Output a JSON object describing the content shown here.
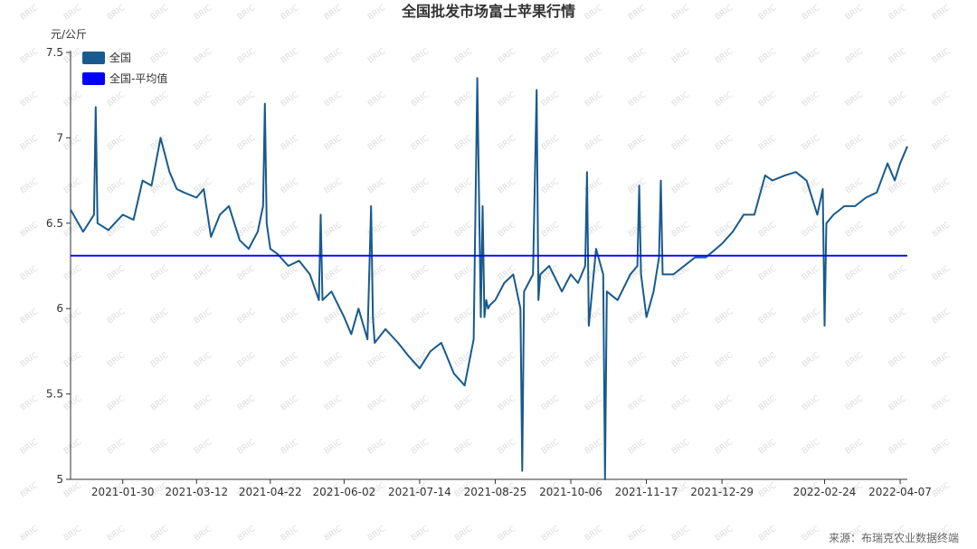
{
  "chart_data": {
    "type": "line",
    "title": "全国批发市场富士苹果行情",
    "ylabel": "元/公斤",
    "xlabel": "",
    "ylim": [
      5,
      7.5
    ],
    "yticks": [
      "5",
      "5.5",
      "6",
      "6.5",
      "7",
      "7.5"
    ],
    "x_range": [
      "2021-01-01",
      "2022-04-11"
    ],
    "xticks": [
      "2021-01-30",
      "2021-03-12",
      "2021-04-22",
      "2021-06-02",
      "2021-07-14",
      "2021-08-25",
      "2021-10-06",
      "2021-11-17",
      "2021-12-29",
      "2022-02-24",
      "2022-04-07"
    ],
    "grid": false,
    "legend_position": "top-left",
    "series": [
      {
        "name": "全国",
        "color": "#185a8d",
        "x": [
          "2021-01-01",
          "2021-01-08",
          "2021-01-14",
          "2021-01-15",
          "2021-01-16",
          "2021-01-22",
          "2021-01-30",
          "2021-02-05",
          "2021-02-10",
          "2021-02-15",
          "2021-02-20",
          "2021-02-25",
          "2021-03-01",
          "2021-03-05",
          "2021-03-12",
          "2021-03-16",
          "2021-03-20",
          "2021-03-25",
          "2021-03-30",
          "2021-04-05",
          "2021-04-10",
          "2021-04-15",
          "2021-04-18",
          "2021-04-19",
          "2021-04-20",
          "2021-04-22",
          "2021-04-26",
          "2021-05-02",
          "2021-05-08",
          "2021-05-14",
          "2021-05-19",
          "2021-05-20",
          "2021-05-21",
          "2021-05-26",
          "2021-06-02",
          "2021-06-06",
          "2021-06-10",
          "2021-06-15",
          "2021-06-17",
          "2021-06-18",
          "2021-06-19",
          "2021-06-25",
          "2021-07-02",
          "2021-07-08",
          "2021-07-14",
          "2021-07-20",
          "2021-07-26",
          "2021-08-02",
          "2021-08-08",
          "2021-08-13",
          "2021-08-15",
          "2021-08-17",
          "2021-08-18",
          "2021-08-19",
          "2021-08-20",
          "2021-08-21",
          "2021-08-22",
          "2021-08-25",
          "2021-08-30",
          "2021-09-04",
          "2021-09-08",
          "2021-09-09",
          "2021-09-10",
          "2021-09-15",
          "2021-09-17",
          "2021-09-18",
          "2021-09-19",
          "2021-09-24",
          "2021-10-01",
          "2021-10-06",
          "2021-10-10",
          "2021-10-14",
          "2021-10-15",
          "2021-10-16",
          "2021-10-20",
          "2021-10-24",
          "2021-10-25",
          "2021-10-26",
          "2021-11-01",
          "2021-11-08",
          "2021-11-12",
          "2021-11-13",
          "2021-11-14",
          "2021-11-17",
          "2021-11-21",
          "2021-11-24",
          "2021-11-25",
          "2021-11-26",
          "2021-12-02",
          "2021-12-08",
          "2021-12-14",
          "2021-12-20",
          "2021-12-29",
          "2022-01-04",
          "2022-01-10",
          "2022-01-16",
          "2022-01-22",
          "2022-01-26",
          "2022-02-02",
          "2022-02-08",
          "2022-02-14",
          "2022-02-20",
          "2022-02-23",
          "2022-02-24",
          "2022-02-25",
          "2022-03-01",
          "2022-03-07",
          "2022-03-13",
          "2022-03-19",
          "2022-03-25",
          "2022-03-31",
          "2022-04-04",
          "2022-04-07",
          "2022-04-11"
        ],
        "values": [
          6.58,
          6.45,
          6.55,
          7.18,
          6.5,
          6.46,
          6.55,
          6.52,
          6.75,
          6.72,
          7.0,
          6.8,
          6.7,
          6.68,
          6.65,
          6.7,
          6.42,
          6.55,
          6.6,
          6.4,
          6.35,
          6.45,
          6.6,
          7.2,
          6.5,
          6.35,
          6.32,
          6.25,
          6.28,
          6.2,
          6.05,
          6.55,
          6.05,
          6.1,
          5.95,
          5.85,
          6.0,
          5.82,
          6.6,
          5.95,
          5.8,
          5.88,
          5.8,
          5.72,
          5.65,
          5.75,
          5.8,
          5.62,
          5.55,
          5.82,
          7.35,
          5.95,
          6.6,
          5.95,
          6.05,
          6.0,
          6.02,
          6.05,
          6.15,
          6.2,
          6.0,
          5.05,
          6.1,
          6.2,
          7.28,
          6.05,
          6.2,
          6.25,
          6.1,
          6.2,
          6.15,
          6.25,
          6.8,
          5.9,
          6.35,
          6.2,
          5.0,
          6.1,
          6.05,
          6.2,
          6.25,
          6.72,
          6.2,
          5.95,
          6.1,
          6.3,
          6.75,
          6.2,
          6.2,
          6.25,
          6.3,
          6.3,
          6.38,
          6.45,
          6.55,
          6.55,
          6.78,
          6.75,
          6.78,
          6.8,
          6.75,
          6.55,
          6.7,
          5.9,
          6.5,
          6.55,
          6.6,
          6.6,
          6.65,
          6.68,
          6.85,
          6.75,
          6.85,
          6.95
        ]
      },
      {
        "name": "全国-平均值",
        "color": "#0000ff",
        "x": [
          "2021-01-01",
          "2022-04-11"
        ],
        "values": [
          6.31,
          6.31
        ]
      }
    ],
    "source": "来源：布瑞克农业数据终端"
  }
}
